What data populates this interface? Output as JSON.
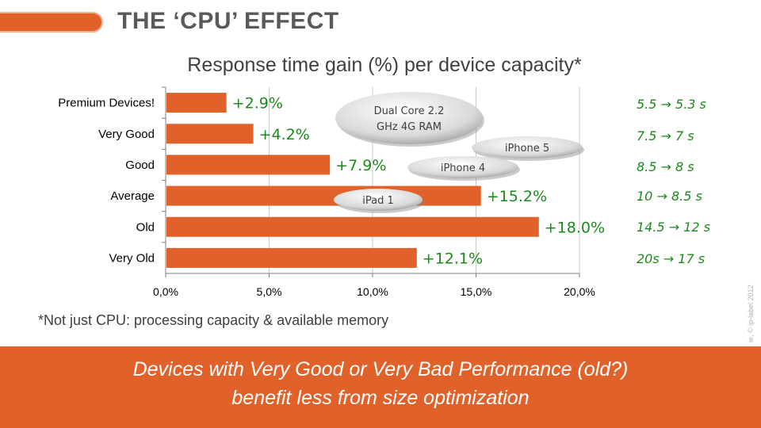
{
  "slide": {
    "title": "THE ‘CPU’ EFFECT",
    "footnote": "*Not just CPU: processing capacity & available memory",
    "copyright": "ie, © ip-label 2012",
    "conclusion_line1": "Devices with Very Good or Very Bad Performance (old?)",
    "conclusion_line2": "benefit less from size optimization",
    "accent_color": "#e0622a",
    "label_color": "#1a8a1a"
  },
  "timings": [
    "5.5 → 5.3 s",
    "7.5 → 7 s",
    "8.5 → 8 s",
    "10 → 8.5 s",
    "14.5 → 12 s",
    "20s → 17 s"
  ],
  "callouts": [
    "Dual Core 2.2",
    "GHz  4G RAM",
    "iPhone 5",
    "iPhone 4",
    "iPad 1"
  ],
  "chart_data": {
    "type": "bar",
    "orientation": "horizontal",
    "title": "Response time gain (%) per device capacity*",
    "categories": [
      "Premium Devices!",
      "Very Good",
      "Good",
      "Average",
      "Old",
      "Very Old"
    ],
    "values": [
      2.9,
      4.2,
      7.9,
      15.2,
      18.0,
      12.1
    ],
    "value_labels": [
      "+2.9%",
      "+4.2%",
      "+7.9%",
      "+15.2%",
      "+18.0%",
      "+12.1%"
    ],
    "xlim": [
      0,
      20
    ],
    "xticks": [
      0,
      5,
      10,
      15,
      20
    ],
    "xtick_labels": [
      "0,0%",
      "5,0%",
      "10,0%",
      "15,0%",
      "20,0%"
    ],
    "grid": true,
    "bar_color": "#e0622a"
  }
}
